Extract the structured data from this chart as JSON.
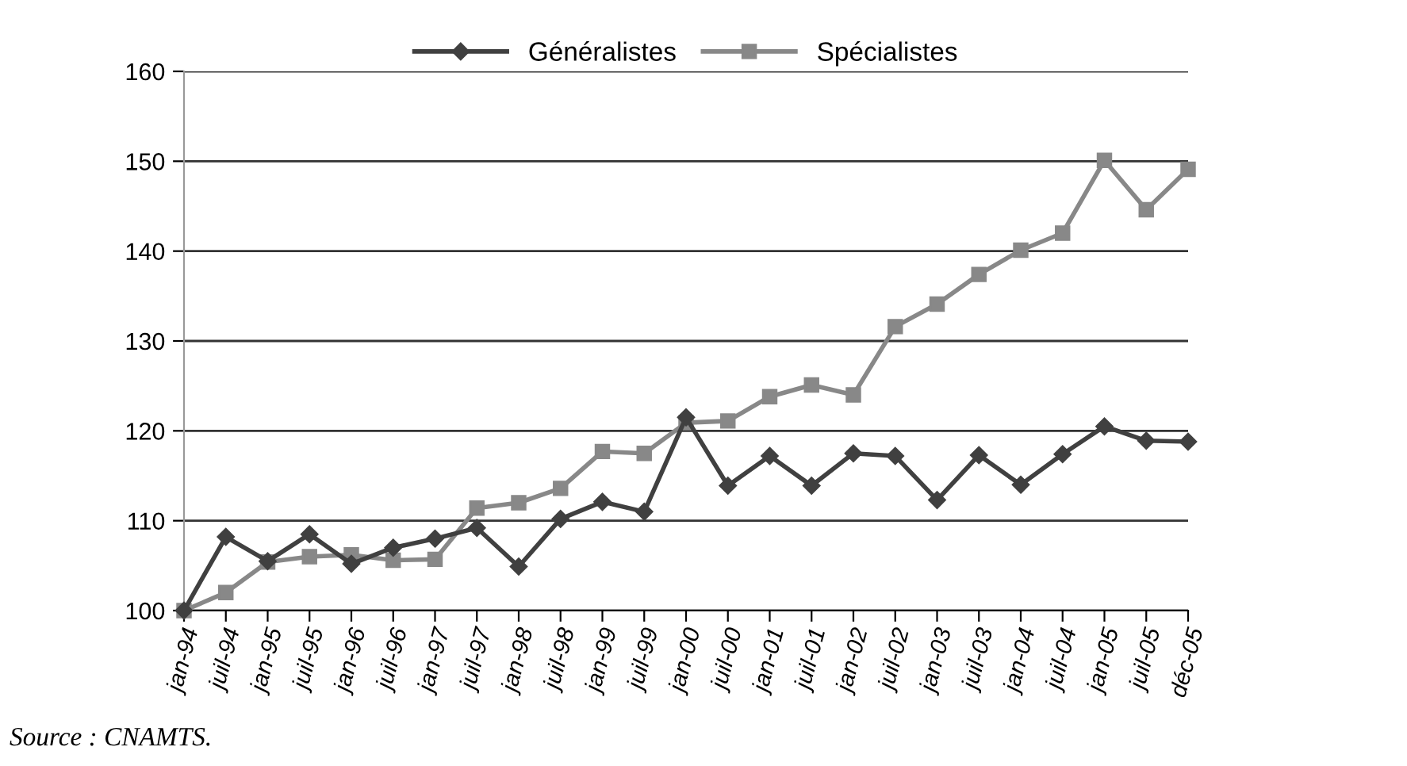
{
  "chart_data": {
    "type": "line",
    "categories": [
      "jan-94",
      "juil-94",
      "jan-95",
      "juil-95",
      "jan-96",
      "juil-96",
      "jan-97",
      "juil-97",
      "jan-98",
      "juil-98",
      "jan-99",
      "juil-99",
      "jan-00",
      "juil-00",
      "jan-01",
      "juil-01",
      "jan-02",
      "juil-02",
      "jan-03",
      "juil-03",
      "jan-04",
      "juil-04",
      "jan-05",
      "juil-05",
      "déc-05"
    ],
    "series": [
      {
        "name": "Généralistes",
        "color": "#404040",
        "marker": "diamond",
        "values": [
          100,
          108.2,
          105.5,
          108.5,
          105.2,
          107,
          108,
          109.2,
          104.9,
          110.2,
          112.1,
          111,
          121.5,
          113.9,
          117.2,
          113.9,
          117.5,
          117.2,
          112.3,
          117.3,
          114,
          117.4,
          120.5,
          118.9,
          118.8
        ]
      },
      {
        "name": "Spécialistes",
        "color": "#888888",
        "marker": "square",
        "values": [
          100,
          102,
          105.4,
          106,
          106.2,
          105.6,
          105.7,
          111.4,
          112,
          113.6,
          117.7,
          117.5,
          120.9,
          121.1,
          123.8,
          125.1,
          124,
          131.6,
          134.1,
          137.4,
          140.1,
          142,
          150.1,
          144.6,
          149.1
        ]
      }
    ],
    "ylim": [
      100,
      160
    ],
    "yticks": [
      100,
      110,
      120,
      130,
      140,
      150,
      160
    ],
    "grid": "y",
    "legend": "top",
    "line_style": "solid",
    "annotations": [
      "Source : CNAMTS."
    ]
  }
}
